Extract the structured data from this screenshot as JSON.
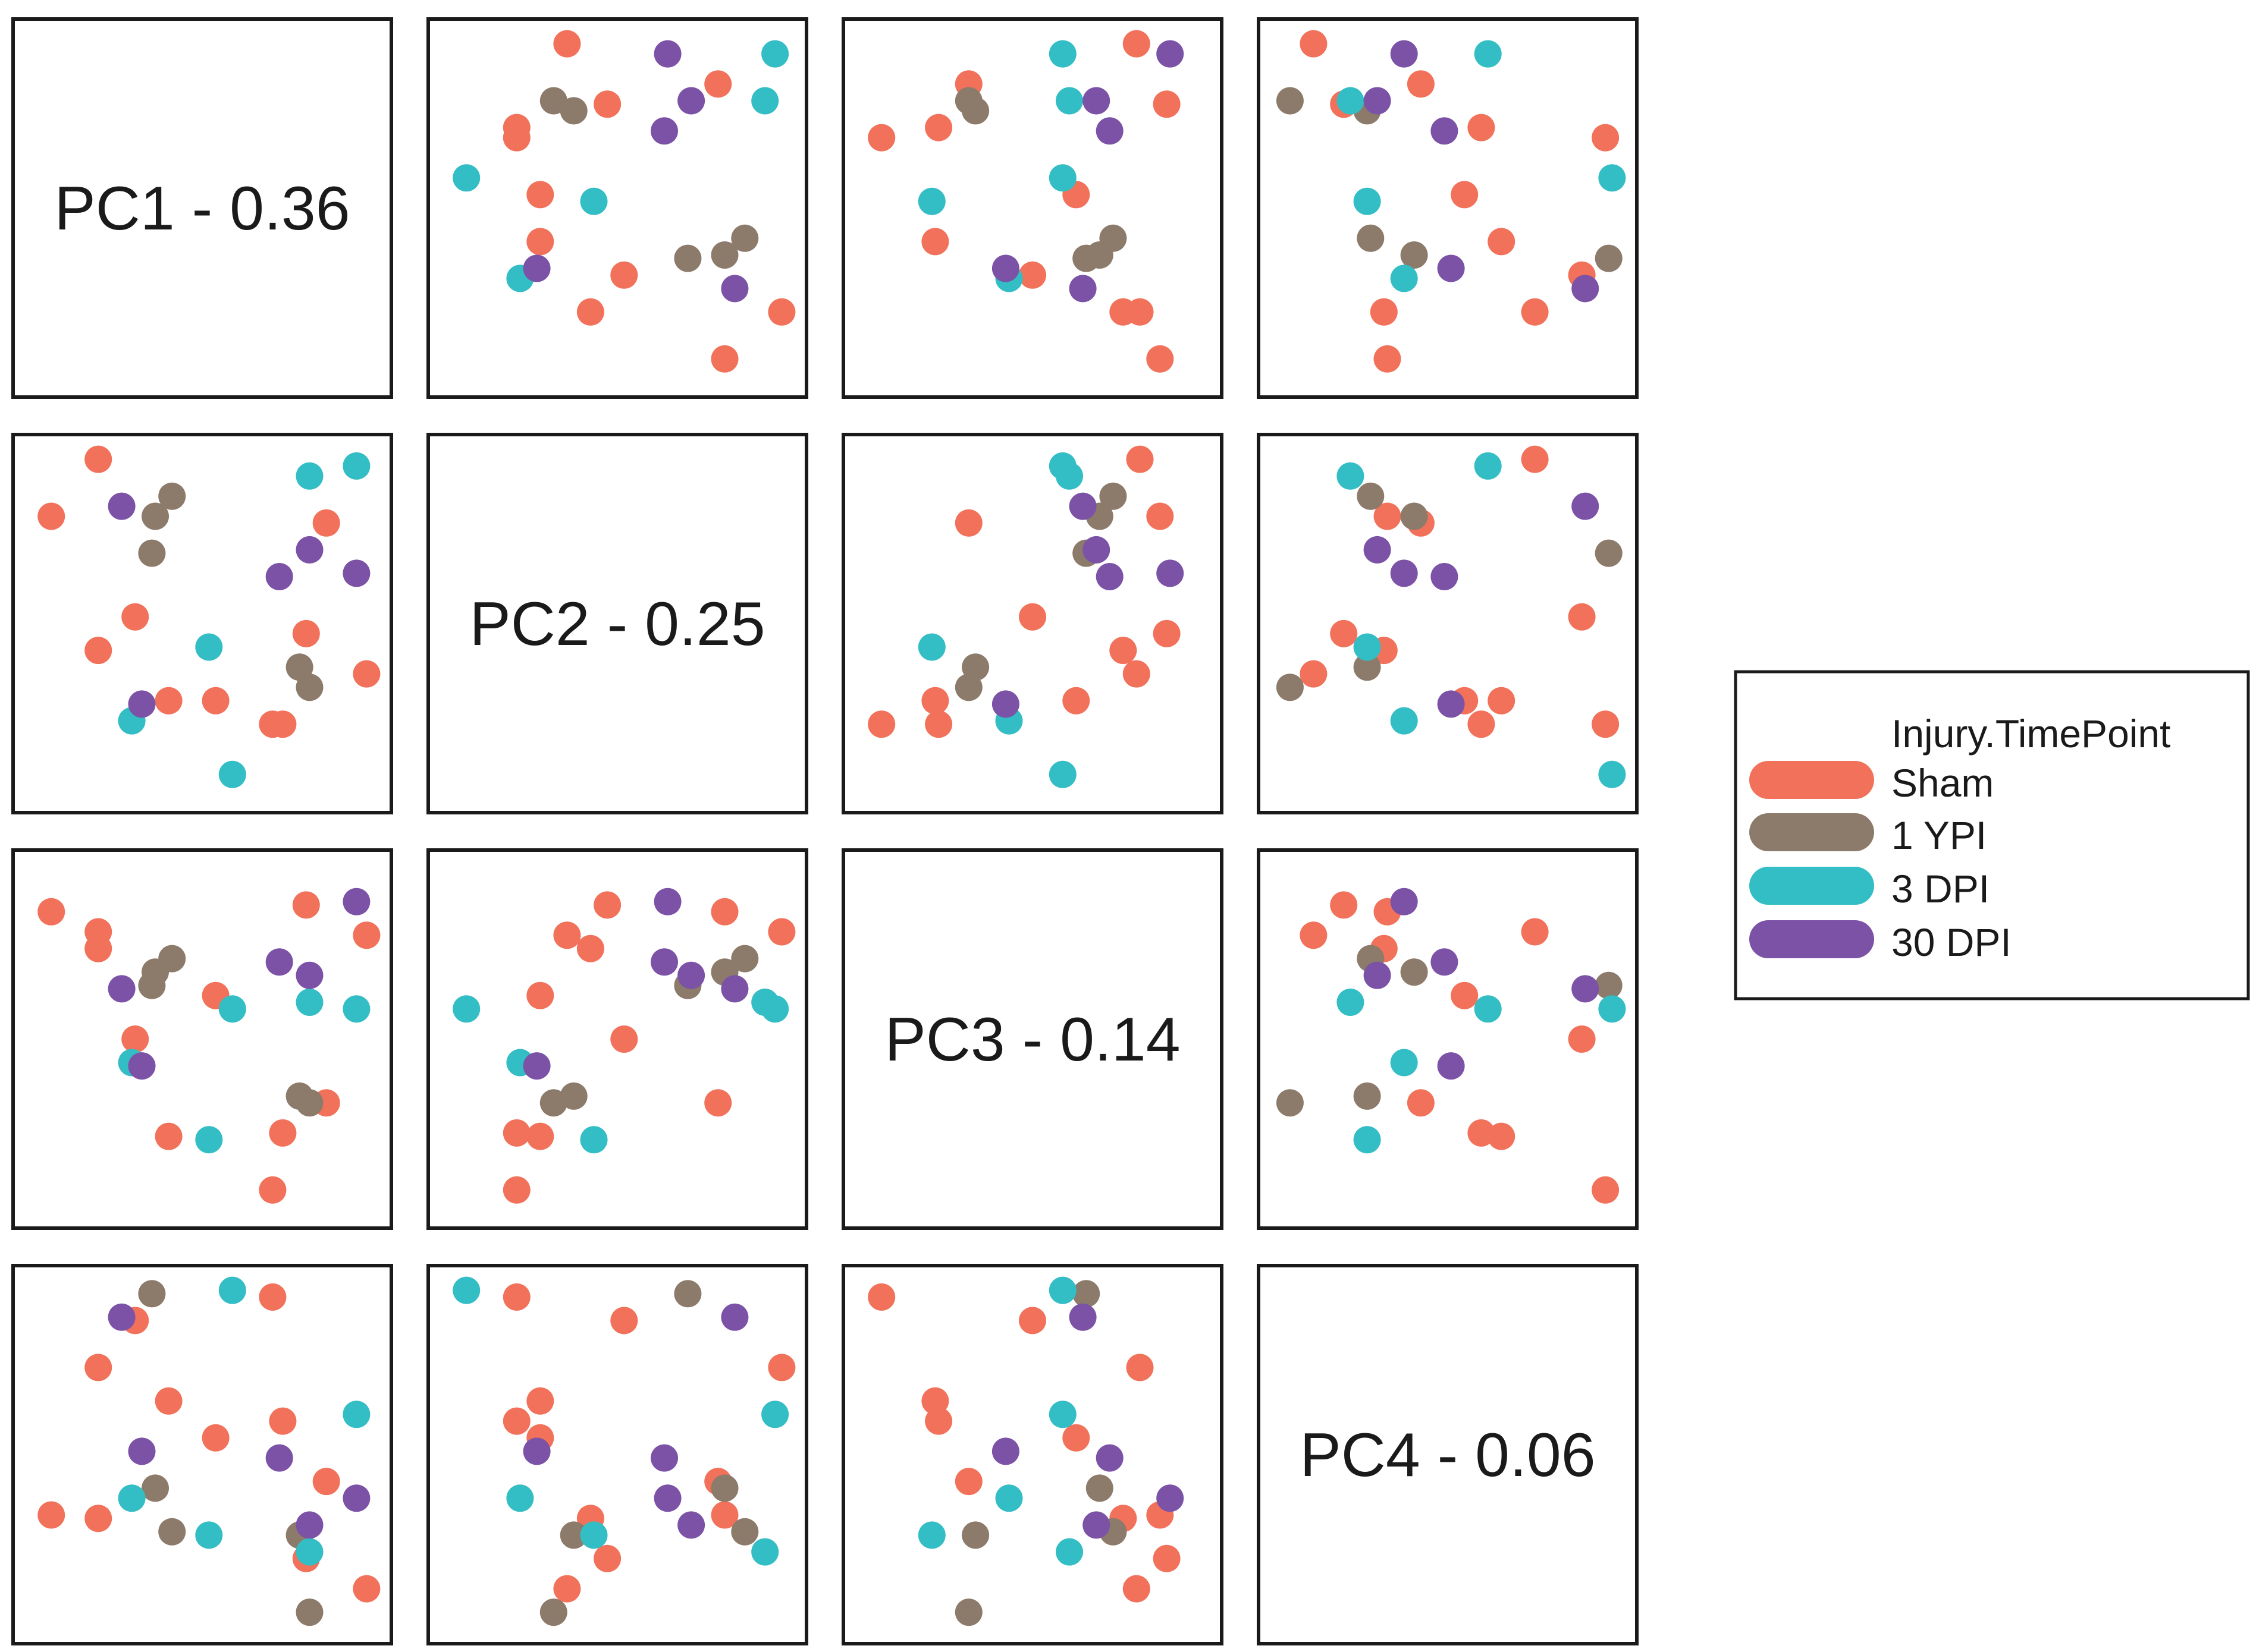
{
  "chart_data": {
    "type": "scatter",
    "layout": "pairs-matrix",
    "components": [
      {
        "name": "PC1",
        "label": "PC1 - 0.36"
      },
      {
        "name": "PC2",
        "label": "PC2 - 0.25"
      },
      {
        "name": "PC3",
        "label": "PC3 - 0.14"
      },
      {
        "name": "PC4",
        "label": "PC4 - 0.06"
      }
    ],
    "legend": {
      "title": "Injury.TimePoint",
      "position": "right",
      "entries": [
        {
          "key": "sham",
          "label": "Sham",
          "color": "#f2715a"
        },
        {
          "key": "1ypi",
          "label": "1 YPI",
          "color": "#8c7b6b"
        },
        {
          "key": "3dpi",
          "label": "3 DPI",
          "color": "#33bdc4"
        },
        {
          "key": "30dpi",
          "label": "30 DPI",
          "color": "#7b52a6"
        }
      ]
    },
    "samples": [
      {
        "group": "sham",
        "PC1": 0.05,
        "PC2": 0.82,
        "PC3": 0.88,
        "PC4": 0.32
      },
      {
        "group": "sham",
        "PC1": 0.19,
        "PC2": 0.99,
        "PC3": 0.82,
        "PC4": 0.76
      },
      {
        "group": "sham",
        "PC1": 0.3,
        "PC2": 0.52,
        "PC3": 0.5,
        "PC4": 0.9
      },
      {
        "group": "sham",
        "PC1": 0.4,
        "PC2": 0.27,
        "PC3": 0.21,
        "PC4": 0.66
      },
      {
        "group": "sham",
        "PC1": 0.71,
        "PC2": 0.2,
        "PC3": 0.05,
        "PC4": 0.97
      },
      {
        "group": "sham",
        "PC1": 0.81,
        "PC2": 0.47,
        "PC3": 0.9,
        "PC4": 0.19
      },
      {
        "group": "sham",
        "PC1": 0.74,
        "PC2": 0.2,
        "PC3": 0.22,
        "PC4": 0.6
      },
      {
        "group": "sham",
        "PC1": 0.19,
        "PC2": 0.42,
        "PC3": 0.77,
        "PC4": 0.31
      },
      {
        "group": "sham",
        "PC1": 0.54,
        "PC2": 0.27,
        "PC3": 0.63,
        "PC4": 0.55
      },
      {
        "group": "sham",
        "PC1": 0.99,
        "PC2": 0.35,
        "PC3": 0.81,
        "PC4": 0.1
      },
      {
        "group": "sham",
        "PC1": 0.87,
        "PC2": 0.8,
        "PC3": 0.31,
        "PC4": 0.42
      },
      {
        "group": "1ypi",
        "PC1": 0.41,
        "PC2": 0.88,
        "PC3": 0.74,
        "PC4": 0.27
      },
      {
        "group": "1ypi",
        "PC1": 0.36,
        "PC2": 0.82,
        "PC3": 0.7,
        "PC4": 0.4
      },
      {
        "group": "1ypi",
        "PC1": 0.35,
        "PC2": 0.71,
        "PC3": 0.66,
        "PC4": 0.98
      },
      {
        "group": "1ypi",
        "PC1": 0.82,
        "PC2": 0.31,
        "PC3": 0.31,
        "PC4": 0.03
      },
      {
        "group": "1ypi",
        "PC1": 0.79,
        "PC2": 0.37,
        "PC3": 0.33,
        "PC4": 0.26
      },
      {
        "group": "3dpi",
        "PC1": 0.52,
        "PC2": 0.43,
        "PC3": 0.2,
        "PC4": 0.26
      },
      {
        "group": "3dpi",
        "PC1": 0.29,
        "PC2": 0.21,
        "PC3": 0.43,
        "PC4": 0.37
      },
      {
        "group": "3dpi",
        "PC1": 0.59,
        "PC2": 0.05,
        "PC3": 0.59,
        "PC4": 0.99
      },
      {
        "group": "3dpi",
        "PC1": 0.96,
        "PC2": 0.97,
        "PC3": 0.59,
        "PC4": 0.62
      },
      {
        "group": "3dpi",
        "PC1": 0.82,
        "PC2": 0.94,
        "PC3": 0.61,
        "PC4": 0.21
      },
      {
        "group": "30dpi",
        "PC1": 0.96,
        "PC2": 0.65,
        "PC3": 0.91,
        "PC4": 0.37
      },
      {
        "group": "30dpi",
        "PC1": 0.26,
        "PC2": 0.85,
        "PC3": 0.65,
        "PC4": 0.91
      },
      {
        "group": "30dpi",
        "PC1": 0.32,
        "PC2": 0.26,
        "PC3": 0.42,
        "PC4": 0.51
      },
      {
        "group": "30dpi",
        "PC1": 0.82,
        "PC2": 0.72,
        "PC3": 0.69,
        "PC4": 0.29
      },
      {
        "group": "30dpi",
        "PC1": 0.73,
        "PC2": 0.64,
        "PC3": 0.73,
        "PC4": 0.49
      }
    ]
  }
}
